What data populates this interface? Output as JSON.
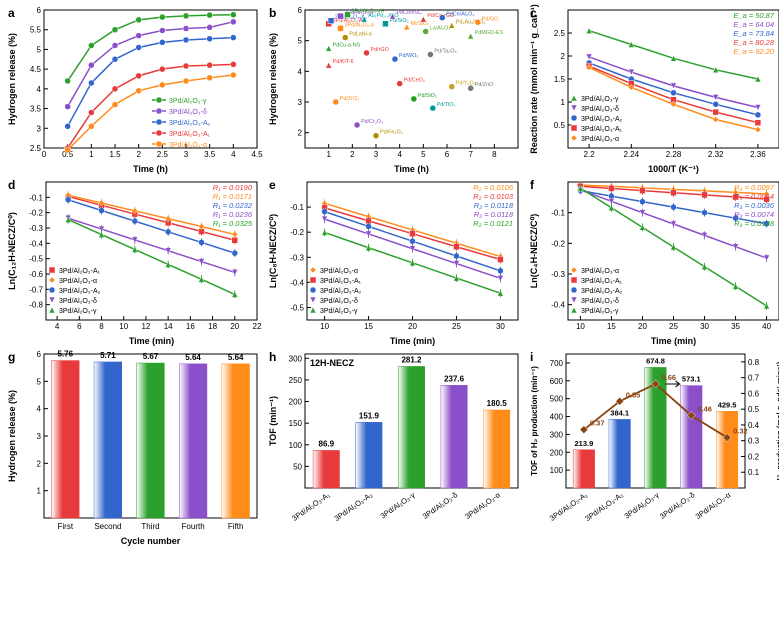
{
  "colors": {
    "A1": "#e83a3a",
    "A2": "#3366cc",
    "gamma": "#2ca02c",
    "delta": "#8a4fc9",
    "alpha": "#ff8c1a",
    "gray": "#777777",
    "grid": "#e5e5e5"
  },
  "catalysts": [
    "3Pd/Al₂O₃-A₁",
    "3Pd/Al₂O₃-A₂",
    "3Pd/Al₂O₃-γ",
    "3Pd/Al₂O₃-δ",
    "3Pd/Al₂O₃-α"
  ],
  "catalyst_tilt": [
    "3Pd/Al₂O₃-A₁",
    "3Pd/Al₂O₃-A₂",
    "3Pd/Al₂O₃-γ",
    "3Pd/Al₂O₃-δ",
    "3Pd/Al₂O₃-α"
  ],
  "a": {
    "label": "a",
    "x": [
      0.5,
      1.0,
      1.5,
      2.0,
      2.5,
      3.0,
      3.5,
      4.0
    ],
    "xlim": [
      0.0,
      4.5
    ],
    "ylim": [
      2.5,
      6.0
    ],
    "xticks": [
      0.0,
      0.5,
      1.0,
      1.5,
      2.0,
      2.5,
      3.0,
      3.5,
      4.0,
      4.5
    ],
    "yticks": [
      2.5,
      3.0,
      3.5,
      4.0,
      4.5,
      5.0,
      5.5,
      6.0
    ],
    "xlabel": "Time (h)",
    "ylabel": "Hydrogen release (%)",
    "series": [
      {
        "key": "gamma",
        "label": "3Pd/Al₂O₃-γ",
        "y": [
          4.2,
          5.1,
          5.5,
          5.75,
          5.82,
          5.85,
          5.87,
          5.88
        ]
      },
      {
        "key": "delta",
        "label": "3Pd/Al₂O₃-δ",
        "y": [
          3.55,
          4.6,
          5.1,
          5.35,
          5.48,
          5.53,
          5.56,
          5.7
        ]
      },
      {
        "key": "A2",
        "label": "3Pd/Al₂O₃-A₂",
        "y": [
          3.05,
          4.15,
          4.75,
          5.05,
          5.18,
          5.24,
          5.27,
          5.3
        ]
      },
      {
        "key": "A1",
        "label": "3Pd/Al₂O₃-A₁",
        "y": [
          2.5,
          3.4,
          4.0,
          4.33,
          4.5,
          4.58,
          4.6,
          4.62
        ]
      },
      {
        "key": "alpha",
        "label": "3Pd/Al₂O₃-α",
        "y": [
          2.45,
          3.05,
          3.6,
          3.95,
          4.1,
          4.2,
          4.28,
          4.35
        ]
      }
    ],
    "marker": "circle",
    "linewidth": 1.5,
    "markersize": 4
  },
  "b": {
    "label": "b",
    "xlim": [
      0,
      9
    ],
    "ylim": [
      1.5,
      6.0
    ],
    "xticks": [
      1,
      2,
      3,
      4,
      5,
      6,
      7,
      8
    ],
    "yticks": [
      2.0,
      3.0,
      4.0,
      5.0,
      6.0
    ],
    "xlabel": "Time (h)",
    "ylabel": "Hydrogen release (%)",
    "points": [
      {
        "x": 1.0,
        "y": 4.2,
        "txt": "Pd/KIT-6",
        "c": "#e83a3a",
        "m": "triangle"
      },
      {
        "x": 1.0,
        "y": 5.55,
        "txt": "3Pd/Al₂O₃-A₁",
        "c": "#e83a3a",
        "m": "square"
      },
      {
        "x": 1.1,
        "y": 5.65,
        "txt": "3Pd/Al₂O₃-A₂",
        "c": "#3366cc",
        "m": "square"
      },
      {
        "x": 1.5,
        "y": 5.8,
        "txt": "3Pd/Al₂O₃-δ",
        "c": "#8a4fc9",
        "m": "square"
      },
      {
        "x": 1.8,
        "y": 5.85,
        "txt": "3Pd/Al₂O₃-γH",
        "c": "#2ca02c",
        "m": "square"
      },
      {
        "x": 1.5,
        "y": 5.4,
        "txt": "3Pd/Al₂O₃-α",
        "c": "#ff8c1a",
        "m": "square"
      },
      {
        "x": 1.7,
        "y": 5.1,
        "txt": "PdLaNi-a",
        "c": "#b58b00",
        "m": "circle"
      },
      {
        "x": 1.0,
        "y": 4.75,
        "txt": "PdCu-a-NS",
        "c": "#2ca02c",
        "m": "triangle"
      },
      {
        "x": 2.5,
        "y": 5.7,
        "txt": "Au₁Pd₁.₃/GO",
        "c": "#009a9a",
        "m": "triangle"
      },
      {
        "x": 2.6,
        "y": 4.6,
        "txt": "Pd/rGO",
        "c": "#e83a3a",
        "m": "circle"
      },
      {
        "x": 3.8,
        "y": 4.4,
        "txt": "Pd/WO₃",
        "c": "#3366cc",
        "m": "circle"
      },
      {
        "x": 3.4,
        "y": 5.55,
        "txt": "Pd/SiO₂",
        "c": "#009a9a",
        "m": "square"
      },
      {
        "x": 3.7,
        "y": 5.8,
        "txt": "PdCo/nSC",
        "c": "#8a4fc9",
        "m": "triangle"
      },
      {
        "x": 4.0,
        "y": 3.6,
        "txt": "Pd/CeO₂",
        "c": "#e83a3a",
        "m": "circle"
      },
      {
        "x": 4.3,
        "y": 5.45,
        "txt": "MI/SiO₂",
        "c": "#ff8c1a",
        "m": "triangle"
      },
      {
        "x": 4.6,
        "y": 3.1,
        "txt": "Pd/SiO₂",
        "c": "#1f9e1f",
        "m": "circle"
      },
      {
        "x": 5.0,
        "y": 5.7,
        "txt": "Pd/Co-rGO",
        "c": "#e83a3a",
        "m": "triangle"
      },
      {
        "x": 5.1,
        "y": 5.3,
        "txt": "La/Al₂O₃",
        "c": "#5daa3a",
        "m": "circle"
      },
      {
        "x": 5.4,
        "y": 2.8,
        "txt": "Pd/TiO₂",
        "c": "#009a9a",
        "m": "circle"
      },
      {
        "x": 5.3,
        "y": 4.55,
        "txt": "Pd/Ta₂O₅",
        "c": "#777777",
        "m": "circle"
      },
      {
        "x": 5.8,
        "y": 5.75,
        "txt": "PdCe/Al₂O₃",
        "c": "#3366cc",
        "m": "circle"
      },
      {
        "x": 6.2,
        "y": 3.5,
        "txt": "Pd/Y₂O₃",
        "c": "#c9a227",
        "m": "circle"
      },
      {
        "x": 6.2,
        "y": 5.5,
        "txt": "Pd₃Au₁/SiO₂",
        "c": "#b58b00",
        "m": "triangle"
      },
      {
        "x": 7.0,
        "y": 3.45,
        "txt": "Pd/ZnO",
        "c": "#777777",
        "m": "circle"
      },
      {
        "x": 7.0,
        "y": 5.15,
        "txt": "PdMGO-ES",
        "c": "#5daa3a",
        "m": "triangle"
      },
      {
        "x": 7.3,
        "y": 5.6,
        "txt": "Pd/GO",
        "c": "#ff8c1a",
        "m": "circle"
      },
      {
        "x": 1.3,
        "y": 3.0,
        "txt": "Pd/ZrO₂",
        "c": "#ff8c1a",
        "m": "circle"
      },
      {
        "x": 2.2,
        "y": 2.25,
        "txt": "Pd/Cr₂O₃",
        "c": "#8a4fc9",
        "m": "circle"
      },
      {
        "x": 3.0,
        "y": 1.9,
        "txt": "Pd/Fe₂O₃",
        "c": "#b58b00",
        "m": "circle"
      }
    ]
  },
  "c": {
    "label": "c",
    "xlim": [
      2.18,
      2.38
    ],
    "ylim": [
      0.0,
      3.0
    ],
    "xticks": [
      2.2,
      2.24,
      2.28,
      2.32,
      2.36
    ],
    "yticks": [
      0.5,
      1.0,
      1.5,
      2.0,
      2.5
    ],
    "xlabel": "1000/T (K⁻¹)",
    "ylabel": "Reaction rate (mmol min⁻¹ g_cat⁻¹)",
    "Ea": [
      {
        "txt": "E_a = 50.87",
        "c": "#2ca02c"
      },
      {
        "txt": "E_a = 64.04",
        "c": "#8a4fc9"
      },
      {
        "txt": "E_a = 73.84",
        "c": "#3366cc"
      },
      {
        "txt": "E_a = 80.28",
        "c": "#e83a3a"
      },
      {
        "txt": "E_a = 92.20",
        "c": "#ff8c1a"
      }
    ],
    "series": [
      {
        "key": "gamma",
        "x": [
          2.2,
          2.24,
          2.28,
          2.32,
          2.36
        ],
        "y": [
          2.55,
          2.25,
          1.95,
          1.7,
          1.5
        ],
        "m": "triangle"
      },
      {
        "key": "delta",
        "x": [
          2.2,
          2.24,
          2.28,
          2.32,
          2.36
        ],
        "y": [
          1.98,
          1.65,
          1.35,
          1.1,
          0.88
        ],
        "m": "down"
      },
      {
        "key": "A2",
        "x": [
          2.2,
          2.24,
          2.28,
          2.32,
          2.36
        ],
        "y": [
          1.85,
          1.5,
          1.2,
          0.95,
          0.72
        ],
        "m": "circle"
      },
      {
        "key": "A1",
        "x": [
          2.2,
          2.24,
          2.28,
          2.32,
          2.36
        ],
        "y": [
          1.78,
          1.4,
          1.05,
          0.78,
          0.55
        ],
        "m": "square"
      },
      {
        "key": "alpha",
        "x": [
          2.2,
          2.24,
          2.28,
          2.32,
          2.36
        ],
        "y": [
          1.75,
          1.32,
          0.95,
          0.62,
          0.4
        ],
        "m": "diamond"
      }
    ],
    "legend": [
      "3Pd/Al₂O₃-γ",
      "3Pd/Al₂O₃-δ",
      "3Pd/Al₂O₃-A₂",
      "3Pd/Al₂O₃-A₁",
      "3Pd/Al₂O₃-α"
    ]
  },
  "d": {
    "label": "d",
    "xlim": [
      3,
      22
    ],
    "ylim": [
      -0.9,
      0.0
    ],
    "xticks": [
      4,
      6,
      8,
      10,
      12,
      14,
      16,
      18,
      20,
      22
    ],
    "yticks": [
      -0.8,
      -0.7,
      -0.6,
      -0.5,
      -0.4,
      -0.3,
      -0.2,
      -0.1
    ],
    "xlabel": "Time (min)",
    "ylabel": "Ln(C₁₂H-NECZ/C⁰)",
    "x": [
      5,
      8,
      11,
      14,
      17,
      20
    ],
    "R": [
      {
        "txt": "R₁ = 0.0190",
        "c": "#e83a3a"
      },
      {
        "txt": "R₁ = 0.0171",
        "c": "#ff8c1a"
      },
      {
        "txt": "R₁ = 0.0232",
        "c": "#3366cc"
      },
      {
        "txt": "R₁ = 0.0236",
        "c": "#8a4fc9"
      },
      {
        "txt": "R₁ = 0.0325",
        "c": "#2ca02c"
      }
    ],
    "series": [
      {
        "key": "A1",
        "y": [
          -0.095,
          -0.152,
          -0.209,
          -0.266,
          -0.323,
          -0.38
        ],
        "m": "square"
      },
      {
        "key": "alpha",
        "y": [
          -0.086,
          -0.137,
          -0.188,
          -0.239,
          -0.29,
          -0.342
        ],
        "m": "diamond"
      },
      {
        "key": "A2",
        "y": [
          -0.116,
          -0.186,
          -0.255,
          -0.325,
          -0.394,
          -0.464
        ],
        "m": "circle"
      },
      {
        "key": "delta",
        "y": [
          -0.236,
          -0.307,
          -0.378,
          -0.448,
          -0.519,
          -0.59
        ],
        "m": "down"
      },
      {
        "key": "gamma",
        "y": [
          -0.245,
          -0.343,
          -0.44,
          -0.538,
          -0.635,
          -0.733
        ],
        "m": "triangle"
      }
    ],
    "legend": [
      "3Pd/Al₂O₃-A₁",
      "3Pd/Al₂O₃-α",
      "3Pd/Al₂O₃-A₂",
      "3Pd/Al₂O₃-δ",
      "3Pd/Al₂O₃-γ"
    ]
  },
  "e": {
    "label": "e",
    "xlim": [
      8,
      32
    ],
    "ylim": [
      -0.55,
      0.0
    ],
    "xticks": [
      10,
      15,
      20,
      25,
      30
    ],
    "yticks": [
      -0.5,
      -0.4,
      -0.3,
      -0.2,
      -0.1
    ],
    "xlabel": "Time (min)",
    "ylabel": "Ln(C₈H-NECZ/C⁰)",
    "x": [
      10,
      15,
      20,
      25,
      30
    ],
    "R": [
      {
        "txt": "R₂ = 0.0106",
        "c": "#ff8c1a"
      },
      {
        "txt": "R₂ = 0.0103",
        "c": "#e83a3a"
      },
      {
        "txt": "R₂ = 0.0118",
        "c": "#3366cc"
      },
      {
        "txt": "R₂ = 0.0118",
        "c": "#8a4fc9"
      },
      {
        "txt": "R₂ = 0.0121",
        "c": "#2ca02c"
      }
    ],
    "series": [
      {
        "key": "alpha",
        "y": [
          -0.085,
          -0.138,
          -0.191,
          -0.244,
          -0.297
        ],
        "m": "diamond"
      },
      {
        "key": "A1",
        "y": [
          -0.103,
          -0.155,
          -0.206,
          -0.258,
          -0.309
        ],
        "m": "square"
      },
      {
        "key": "A2",
        "y": [
          -0.118,
          -0.177,
          -0.236,
          -0.295,
          -0.354
        ],
        "m": "circle"
      },
      {
        "key": "delta",
        "y": [
          -0.148,
          -0.207,
          -0.266,
          -0.325,
          -0.384
        ],
        "m": "down"
      },
      {
        "key": "gamma",
        "y": [
          -0.201,
          -0.262,
          -0.322,
          -0.383,
          -0.443
        ],
        "m": "triangle"
      }
    ],
    "legend": [
      "3Pd/Al₂O₃-α",
      "3Pd/Al₂O₃-A₁",
      "3Pd/Al₂O₃-A₂",
      "3Pd/Al₂O₃-δ",
      "3Pd/Al₂O₃-γ"
    ]
  },
  "f": {
    "label": "f",
    "xlim": [
      8,
      42
    ],
    "ylim": [
      -0.45,
      0.0
    ],
    "xticks": [
      10,
      15,
      20,
      25,
      30,
      35,
      40
    ],
    "yticks": [
      -0.4,
      -0.3,
      -0.2,
      -0.1
    ],
    "xlabel": "Time (min)",
    "ylabel": "Ln(C₄H-NECZ/C⁰)",
    "x": [
      10,
      15,
      20,
      25,
      30,
      35,
      40
    ],
    "R": [
      {
        "txt": "R₃ = 0.0097",
        "c": "#ff8c1a"
      },
      {
        "txt": "R₃ = 0.0014",
        "c": "#e83a3a"
      },
      {
        "txt": "R₃ = 0.0036",
        "c": "#3366cc"
      },
      {
        "txt": "R₃ = 0.0074",
        "c": "#8a4fc9"
      },
      {
        "txt": "R₃ = 0.0128",
        "c": "#2ca02c"
      }
    ],
    "series": [
      {
        "key": "alpha",
        "y": [
          -0.01,
          -0.014,
          -0.019,
          -0.024,
          -0.029,
          -0.034,
          -0.039
        ],
        "m": "diamond"
      },
      {
        "key": "A1",
        "y": [
          -0.014,
          -0.021,
          -0.028,
          -0.035,
          -0.042,
          -0.049,
          -0.056
        ],
        "m": "square"
      },
      {
        "key": "A2",
        "y": [
          -0.028,
          -0.046,
          -0.064,
          -0.082,
          -0.1,
          -0.118,
          -0.136
        ],
        "m": "circle"
      },
      {
        "key": "delta",
        "y": [
          -0.026,
          -0.063,
          -0.1,
          -0.137,
          -0.174,
          -0.211,
          -0.248
        ],
        "m": "down"
      },
      {
        "key": "gamma",
        "y": [
          -0.02,
          -0.084,
          -0.148,
          -0.212,
          -0.276,
          -0.34,
          -0.404
        ],
        "m": "triangle"
      }
    ],
    "legend": [
      "3Pd/Al₂O₃-α",
      "3Pd/Al₂O₃-A₁",
      "3Pd/Al₂O₃-A₂",
      "3Pd/Al₂O₃-δ",
      "3Pd/Al₂O₃-γ"
    ]
  },
  "g": {
    "label": "g",
    "cats": [
      "First",
      "Second",
      "Third",
      "Fourth",
      "Fifth"
    ],
    "vals": [
      5.76,
      5.71,
      5.67,
      5.64,
      5.64
    ],
    "ylim": [
      0,
      6
    ],
    "yticks": [
      1,
      2,
      3,
      4,
      5,
      6
    ],
    "xlabel": "Cycle number",
    "ylabel": "Hydrogen release (%)",
    "bar_colors_seq": [
      "#e83a3a",
      "#3366cc",
      "#2ca02c",
      "#8a4fc9",
      "#ff8c1a"
    ]
  },
  "h": {
    "label": "h",
    "title": "12H-NECZ",
    "cats": [
      "3Pd/Al₂O₃-A₁",
      "3Pd/Al₂O₃-A₂",
      "3Pd/Al₂O₃-γ",
      "3Pd/Al₂O₃-δ",
      "3Pd/Al₂O₃-α"
    ],
    "vals": [
      86.9,
      151.9,
      281.2,
      237.6,
      180.5
    ],
    "ylim": [
      0,
      310
    ],
    "yticks": [
      50,
      100,
      150,
      200,
      250,
      300
    ],
    "ylabel": "TOF (min⁻¹)",
    "bar_colors_seq": [
      "#e83a3a",
      "#3366cc",
      "#2ca02c",
      "#8a4fc9",
      "#ff8c1a"
    ]
  },
  "i": {
    "label": "i",
    "cats": [
      "3Pd/Al₂O₃-A₁",
      "3Pd/Al₂O₃-A₂",
      "3Pd/Al₂O₃-γ",
      "3Pd/Al₂O₃-δ",
      "3Pd/Al₂O₃-α"
    ],
    "bars": [
      213.9,
      384.1,
      674.8,
      573.1,
      429.5
    ],
    "line": [
      0.37,
      0.55,
      0.66,
      0.46,
      0.32
    ],
    "line_labels": [
      "0.37",
      "0.55",
      "0.66",
      "0.46",
      "0.32"
    ],
    "ylim1": [
      0,
      750
    ],
    "yticks1": [
      100,
      200,
      300,
      400,
      500,
      600,
      700
    ],
    "ylim2": [
      0,
      0.85
    ],
    "yticks2": [
      0.1,
      0.2,
      0.3,
      0.4,
      0.5,
      0.6,
      0.7,
      0.8
    ],
    "ylabel1": "TOF of H₂ production (min⁻¹)",
    "ylabel2": "H₂ production (mol g_pd⁻¹ min⁻¹)",
    "bar_colors_seq": [
      "#e83a3a",
      "#3366cc",
      "#2ca02c",
      "#8a4fc9",
      "#ff8c1a"
    ],
    "line_color": "#8B4513"
  }
}
